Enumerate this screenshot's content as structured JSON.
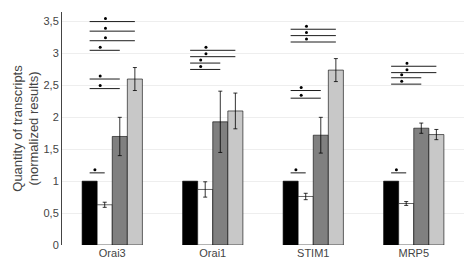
{
  "chart_data": {
    "type": "bar",
    "categories": [
      "Orai3",
      "Orai1",
      "STIM1",
      "MRP5"
    ],
    "series": [
      {
        "color": "#000000",
        "values": [
          1.0,
          1.0,
          1.0,
          1.0
        ],
        "errors": [
          0.0,
          0.0,
          0.0,
          0.0
        ]
      },
      {
        "color": "#ffffff",
        "values": [
          0.63,
          0.87,
          0.76,
          0.65
        ],
        "errors": [
          0.04,
          0.12,
          0.05,
          0.03
        ]
      },
      {
        "color": "#808080",
        "values": [
          1.7,
          1.93,
          1.72,
          1.83
        ],
        "errors": [
          0.3,
          0.48,
          0.28,
          0.08
        ]
      },
      {
        "color": "#c8c8c8",
        "values": [
          2.6,
          2.1,
          2.74,
          1.73
        ],
        "errors": [
          0.18,
          0.28,
          0.18,
          0.08
        ]
      }
    ],
    "ylabel": "Quantity of transcripts\n(normalized results)",
    "ylim": [
      0,
      3.65
    ],
    "yticks": [
      0,
      {
        "value": 0.5,
        "label": "0,5"
      },
      1,
      {
        "value": 1.5,
        "label": "1,5"
      },
      2,
      {
        "value": 2.5,
        "label": "2,5"
      },
      3,
      {
        "value": 3.5,
        "label": "3,5"
      }
    ],
    "grid": true,
    "sig_lines": [
      {
        "category": "Orai3",
        "y": 1.13,
        "from": 0,
        "to": 1
      },
      {
        "category": "Orai3",
        "y": 2.45,
        "from": 0,
        "to": 2
      },
      {
        "category": "Orai3",
        "y": 2.6,
        "from": 0,
        "to": 2
      },
      {
        "category": "Orai3",
        "y": 3.05,
        "from": 0,
        "to": 2
      },
      {
        "category": "Orai3",
        "y": 3.2,
        "from": 0,
        "to": 3
      },
      {
        "category": "Orai3",
        "y": 3.35,
        "from": 0,
        "to": 3
      },
      {
        "category": "Orai3",
        "y": 3.5,
        "from": 0,
        "to": 3
      },
      {
        "category": "Orai1",
        "y": 2.75,
        "from": 0,
        "to": 2
      },
      {
        "category": "Orai1",
        "y": 2.85,
        "from": 0,
        "to": 2
      },
      {
        "category": "Orai1",
        "y": 2.95,
        "from": 0,
        "to": 3
      },
      {
        "category": "Orai1",
        "y": 3.05,
        "from": 0,
        "to": 3
      },
      {
        "category": "STIM1",
        "y": 1.13,
        "from": 0,
        "to": 1
      },
      {
        "category": "STIM1",
        "y": 2.3,
        "from": 0,
        "to": 2
      },
      {
        "category": "STIM1",
        "y": 2.42,
        "from": 0,
        "to": 2
      },
      {
        "category": "STIM1",
        "y": 3.18,
        "from": 0,
        "to": 3
      },
      {
        "category": "STIM1",
        "y": 3.28,
        "from": 0,
        "to": 3
      },
      {
        "category": "STIM1",
        "y": 3.38,
        "from": 0,
        "to": 3
      },
      {
        "category": "MRP5",
        "y": 1.13,
        "from": 0,
        "to": 1
      },
      {
        "category": "MRP5",
        "y": 2.52,
        "from": 0,
        "to": 2
      },
      {
        "category": "MRP5",
        "y": 2.62,
        "from": 0,
        "to": 2
      },
      {
        "category": "MRP5",
        "y": 2.7,
        "from": 0,
        "to": 3
      },
      {
        "category": "MRP5",
        "y": 2.8,
        "from": 0,
        "to": 3
      }
    ]
  }
}
